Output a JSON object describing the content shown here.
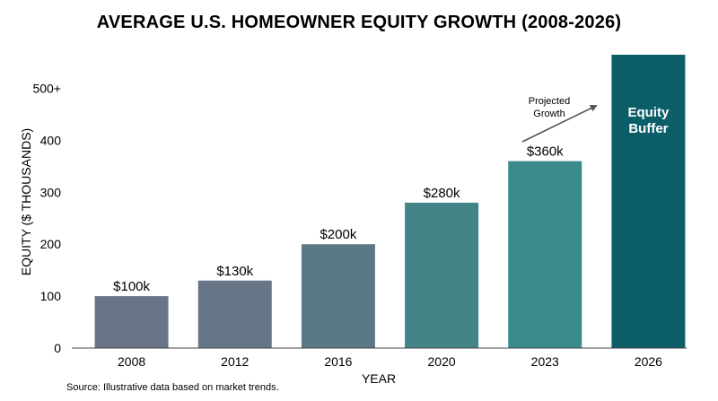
{
  "chart_data": {
    "type": "bar",
    "title": "AVERAGE U.S. HOMEOWNER EQUITY GROWTH (2008-2026)",
    "xlabel": "YEAR",
    "ylabel": "EQUITY ($ THOUSANDS)",
    "categories": [
      "2008",
      "2012",
      "2016",
      "2020",
      "2023",
      "2026"
    ],
    "values": [
      100,
      130,
      200,
      280,
      360,
      565
    ],
    "data_labels": [
      "$100k",
      "$130k",
      "$200k",
      "$280k",
      "$360k",
      ""
    ],
    "yticks": [
      {
        "value": 0,
        "label": "0"
      },
      {
        "value": 100,
        "label": "100"
      },
      {
        "value": 200,
        "label": "200"
      },
      {
        "value": 300,
        "label": "300"
      },
      {
        "value": 400,
        "label": "400"
      },
      {
        "value": 500,
        "label": "500+"
      }
    ],
    "ylim": [
      0,
      565
    ],
    "grid": false,
    "legend": "none",
    "bar_colors": [
      "#697486",
      "#677686",
      "#5b7886",
      "#428488",
      "#3b8a8c",
      "#0b5e68"
    ],
    "inner_label_lines": [
      "Equity",
      "Buffer"
    ],
    "annotation_lines": [
      "Projected",
      "Growth"
    ],
    "annotation_color": "#555555",
    "source": "Source: Illustrative data based on market trends."
  }
}
